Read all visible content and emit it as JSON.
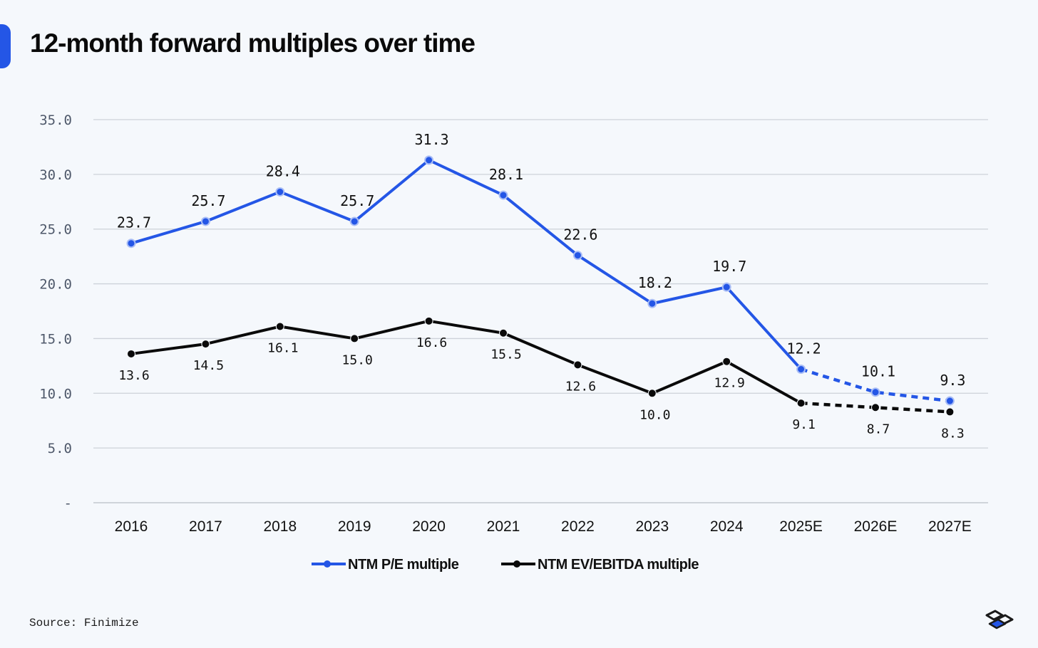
{
  "page": {
    "title": "12-month forward multiples over time",
    "source": "Source: Finimize",
    "logo_icon": "finimize-logo-icon",
    "accent_color": "#2456e6"
  },
  "chart_data": {
    "type": "line",
    "title": "12-month forward multiples over time",
    "xlabel": "",
    "ylabel": "",
    "categories": [
      "2016",
      "2017",
      "2018",
      "2019",
      "2020",
      "2021",
      "2022",
      "2023",
      "2024",
      "2025E",
      "2026E",
      "2027E"
    ],
    "ylim": [
      0,
      35
    ],
    "yticks": [
      0,
      5,
      10,
      15,
      20,
      25,
      30,
      35
    ],
    "ytick_labels": [
      "-",
      "5.0",
      "10.0",
      "15.0",
      "20.0",
      "25.0",
      "30.0",
      "35.0"
    ],
    "grid": true,
    "legend_position": "bottom-center",
    "forecast_from_index": 9,
    "series": [
      {
        "name": "NTM P/E multiple",
        "color": "#2456e6",
        "values": [
          23.7,
          25.7,
          28.4,
          25.7,
          31.3,
          28.1,
          22.6,
          18.2,
          19.7,
          12.2,
          10.1,
          9.3
        ],
        "labels": [
          "23.7",
          "25.7",
          "28.4",
          "25.7",
          "31.3",
          "28.1",
          "22.6",
          "18.2",
          "19.7",
          "12.2",
          "10.1",
          "9.3"
        ],
        "label_placement": "above"
      },
      {
        "name": "NTM EV/EBITDA multiple",
        "color": "#0a0a0a",
        "values": [
          13.6,
          14.5,
          16.1,
          15.0,
          16.6,
          15.5,
          12.6,
          10.0,
          12.9,
          9.1,
          8.7,
          8.3
        ],
        "labels": [
          "13.6",
          "14.5",
          "16.1",
          "15.0",
          "16.6",
          "15.5",
          "12.6",
          "10.0",
          "12.9",
          "9.1",
          "8.7",
          "8.3"
        ],
        "label_placement": "below"
      }
    ]
  }
}
